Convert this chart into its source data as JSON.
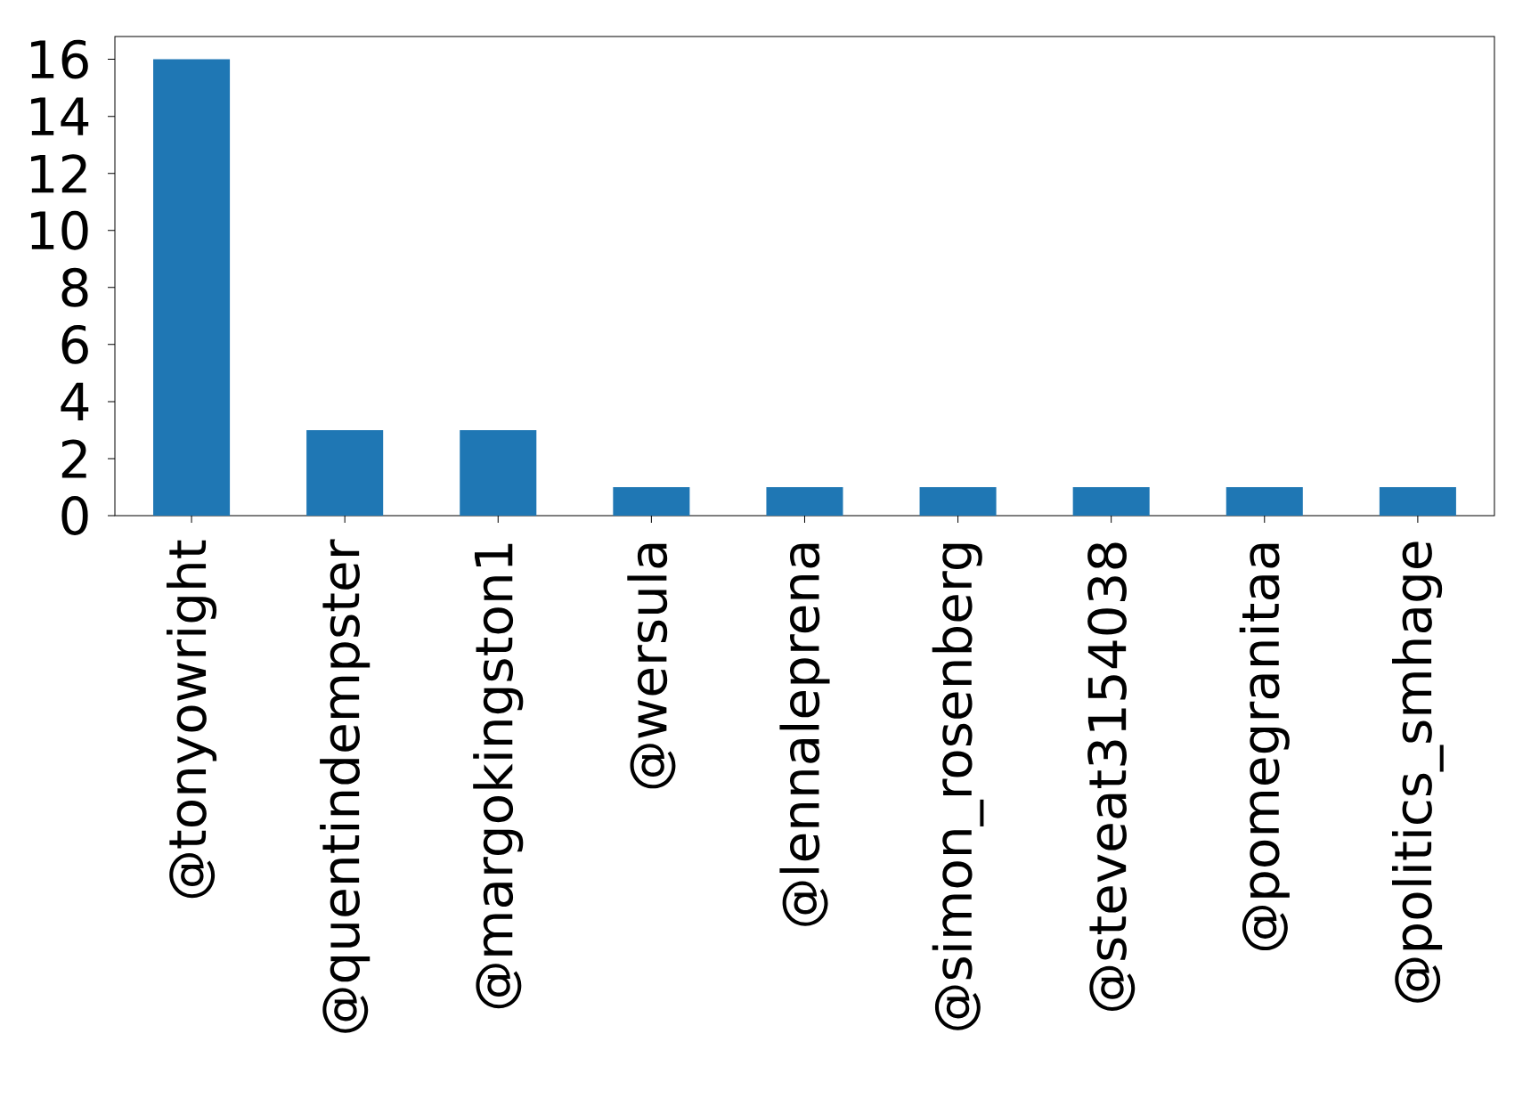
{
  "chart_data": {
    "type": "bar",
    "categories": [
      "@tonyowright",
      "@quentindempster",
      "@margokingston1",
      "@wersula",
      "@lennaleprena",
      "@simon_rosenberg",
      "@steveat3154038",
      "@pomegranitaa",
      "@politics_smhage"
    ],
    "values": [
      16,
      3,
      3,
      1,
      1,
      1,
      1,
      1,
      1
    ],
    "color": "#1f77b4",
    "ylim": [
      0,
      16.8
    ],
    "yticks": [
      0,
      2,
      4,
      6,
      8,
      10,
      12,
      14,
      16
    ],
    "grid": false
  }
}
